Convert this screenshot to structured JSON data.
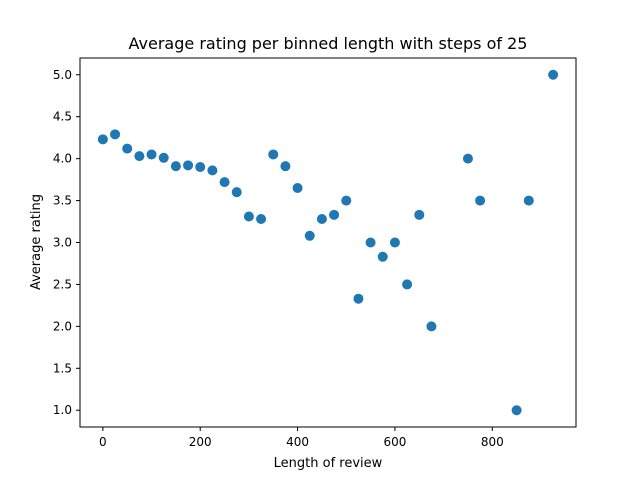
{
  "chart_data": {
    "type": "scatter",
    "title": "Average rating per binned length with steps of 25",
    "xlabel": "Length of review",
    "ylabel": "Average rating",
    "xlim": [
      -47,
      972
    ],
    "ylim": [
      0.8,
      5.2
    ],
    "xticks": [
      0,
      200,
      400,
      600,
      800
    ],
    "yticks": [
      1.0,
      1.5,
      2.0,
      2.5,
      3.0,
      3.5,
      4.0,
      4.5,
      5.0
    ],
    "grid": false,
    "marker_color": "#1f77b4",
    "points": [
      {
        "x": 0,
        "y": 4.23
      },
      {
        "x": 25,
        "y": 4.29
      },
      {
        "x": 50,
        "y": 4.12
      },
      {
        "x": 75,
        "y": 4.03
      },
      {
        "x": 100,
        "y": 4.05
      },
      {
        "x": 125,
        "y": 4.01
      },
      {
        "x": 150,
        "y": 3.91
      },
      {
        "x": 175,
        "y": 3.92
      },
      {
        "x": 200,
        "y": 3.9
      },
      {
        "x": 225,
        "y": 3.86
      },
      {
        "x": 250,
        "y": 3.72
      },
      {
        "x": 275,
        "y": 3.6
      },
      {
        "x": 300,
        "y": 3.31
      },
      {
        "x": 325,
        "y": 3.28
      },
      {
        "x": 350,
        "y": 4.05
      },
      {
        "x": 375,
        "y": 3.91
      },
      {
        "x": 400,
        "y": 3.65
      },
      {
        "x": 425,
        "y": 3.08
      },
      {
        "x": 450,
        "y": 3.28
      },
      {
        "x": 475,
        "y": 3.33
      },
      {
        "x": 500,
        "y": 3.5
      },
      {
        "x": 525,
        "y": 2.33
      },
      {
        "x": 550,
        "y": 3.0
      },
      {
        "x": 575,
        "y": 2.83
      },
      {
        "x": 600,
        "y": 3.0
      },
      {
        "x": 625,
        "y": 2.5
      },
      {
        "x": 650,
        "y": 3.33
      },
      {
        "x": 675,
        "y": 2.0
      },
      {
        "x": 750,
        "y": 4.0
      },
      {
        "x": 775,
        "y": 3.5
      },
      {
        "x": 850,
        "y": 1.0
      },
      {
        "x": 875,
        "y": 3.5
      },
      {
        "x": 925,
        "y": 5.0
      }
    ]
  }
}
